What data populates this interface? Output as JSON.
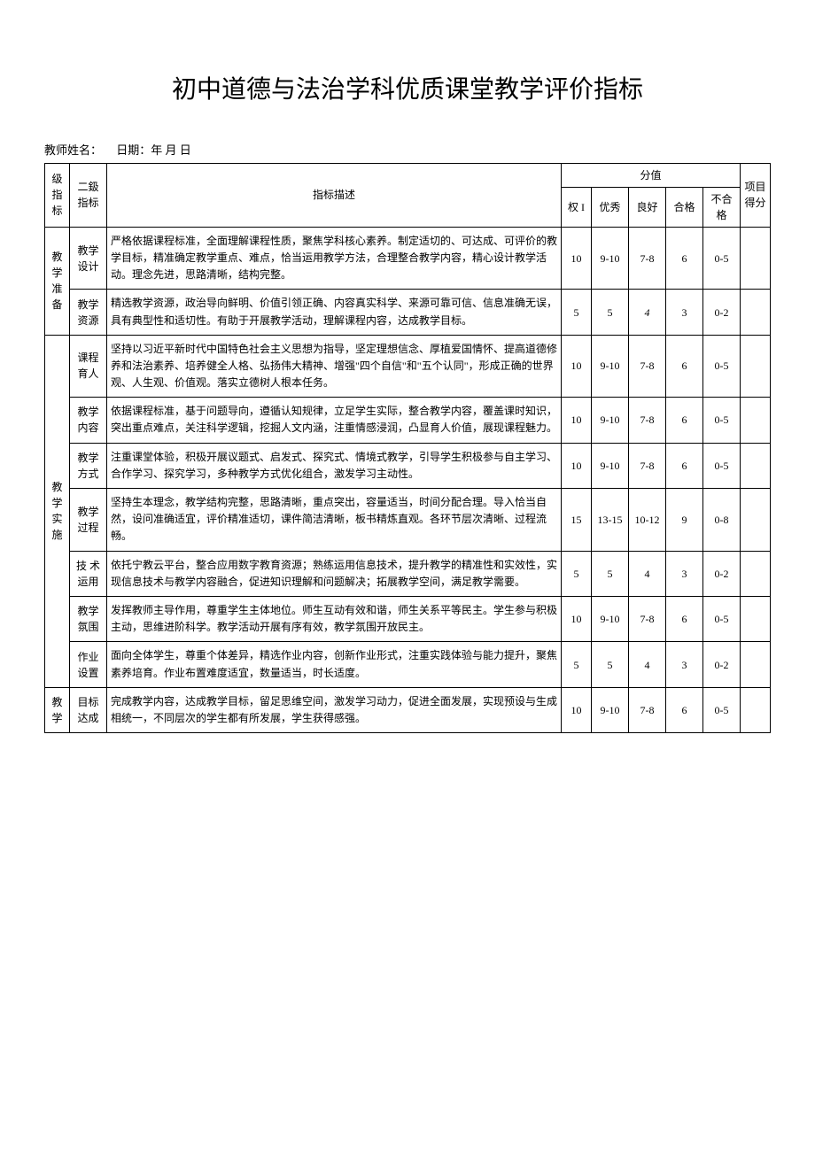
{
  "title": "初中道德与法治学科优质课堂教学评价指标",
  "meta": {
    "teacher_label": "教师姓名：",
    "date_label": "日期：年 月 日"
  },
  "table": {
    "header": {
      "level1": "级指标",
      "level2": "二鈒指标",
      "desc": "指标描述",
      "score_group": "分值",
      "weight": "权 I",
      "excellent": "优秀",
      "good": "良好",
      "pass": "合格",
      "fail": "不合格",
      "item_score": "项目得分"
    },
    "groups": [
      {
        "name": "教学准备",
        "rows": [
          {
            "sub": "教学设计",
            "desc": "严格依据课程标准，全面理解课程性质，聚焦学科核心素养。制定适切的、可达成、可评价的教学目标，精准确定教学重点、难点，恰当运用教学方法，合理整合教学内容，精心设计教学活动。理念先进，思路清晰，结构完整。",
            "weight": "10",
            "excellent": "9-10",
            "good": "7-8",
            "pass": "6",
            "fail": "0-5"
          },
          {
            "sub": "教学资源",
            "desc": "精选教学资源，政治导向鲜明、价值引领正确、内容真实科学、来源可靠可信、信息准确无误，具有典型性和适切性。有助于开展教学活动，理解课程内容，达成教学目标。",
            "weight": "5",
            "excellent": "5",
            "good": "4",
            "good_italic": true,
            "pass": "3",
            "fail": "0-2"
          }
        ]
      },
      {
        "name": "教学实施",
        "rows": [
          {
            "sub": "课程育人",
            "desc": "坚持以习近平新时代中国特色社会主义思想为指导，坚定理想信念、厚植爱国情怀、提高道德修养和法治素养、培养健全人格、弘扬伟大精神、增强\"四个自信\"和\"五个认同\"，形成正确的世界观、人生观、价值观。落实立德树人根本任务。",
            "weight": "10",
            "excellent": "9-10",
            "good": "7-8",
            "pass": "6",
            "fail": "0-5"
          },
          {
            "sub": "教学内容",
            "desc": "依据课程标准，基于问题导向，遵循认知规律，立足学生实际，整合教学内容，覆盖课时知识，突出重点难点，关注科学逻辑，挖掘人文内涵，注重情感浸润，凸显育人价值，展现课程魅力。",
            "weight": "10",
            "excellent": "9-10",
            "good": "7-8",
            "pass": "6",
            "fail": "0-5"
          },
          {
            "sub": "教学方式",
            "desc": "注重课堂体验，积极开展议题式、启发式、探究式、情境式教学，引导学生积极参与自主学习、合作学习、探究学习，多种教学方式优化组合，激发学习主动性。",
            "weight": "10",
            "excellent": "9-10",
            "good": "7-8",
            "pass": "6",
            "fail": "0-5"
          },
          {
            "sub": "教学过程",
            "desc": "坚持生本理念，教学结构完整，思路清晰，重点突出，容量适当，时间分配合理。导入恰当自然，设问准确适宜，评价精准适切，课件简洁清晰，板书精炼直观。各环节层次清晰、过程流畅。",
            "weight": "15",
            "excellent": "13-15",
            "good": "10-12",
            "pass": "9",
            "fail": "0-8"
          },
          {
            "sub": "技 术运用",
            "desc": "依托宁教云平台，整合应用数字教育资源；熟练运用信息技术，提升教学的精准性和实效性，实现信息技术与教学内容融合，促进知识理解和问题解决；拓展教学空间，满足教学需要。",
            "weight": "5",
            "excellent": "5",
            "good": "4",
            "pass": "3",
            "fail": "0-2"
          },
          {
            "sub": "教学氛围",
            "desc": "发挥教师主导作用，尊重学生主体地位。师生互动有效和谐，师生关系平等民主。学生参与积极主动，思维进阶科学。教学活动开展有序有效，教学氛围开放民主。",
            "weight": "10",
            "excellent": "9-10",
            "good": "7-8",
            "pass": "6",
            "fail": "0-5"
          },
          {
            "sub": "作业设置",
            "desc": "面向全体学生，尊重个体差异，精选作业内容，创新作业形式，注重实践体验与能力提升，聚焦素养培育。作业布置难度适宜，数量适当，时长适度。",
            "weight": "5",
            "excellent": "5",
            "good": "4",
            "pass": "3",
            "fail": "0-2"
          }
        ]
      },
      {
        "name": "教学",
        "rows": [
          {
            "sub": "目标达成",
            "desc": "完成教学内容，达成教学目标，留足思维空间，激发学习动力，促进全面发展，实现预设与生成相统一，不同层次的学生都有所发展，学生获得感强。",
            "weight": "10",
            "excellent": "9-10",
            "good": "7-8",
            "pass": "6",
            "fail": "0-5"
          }
        ]
      }
    ]
  },
  "style": {
    "page_bg": "#ffffff",
    "text_color": "#000000",
    "border_color": "#000000",
    "title_fontsize": 28,
    "body_fontsize": 12,
    "meta_fontsize": 13
  }
}
